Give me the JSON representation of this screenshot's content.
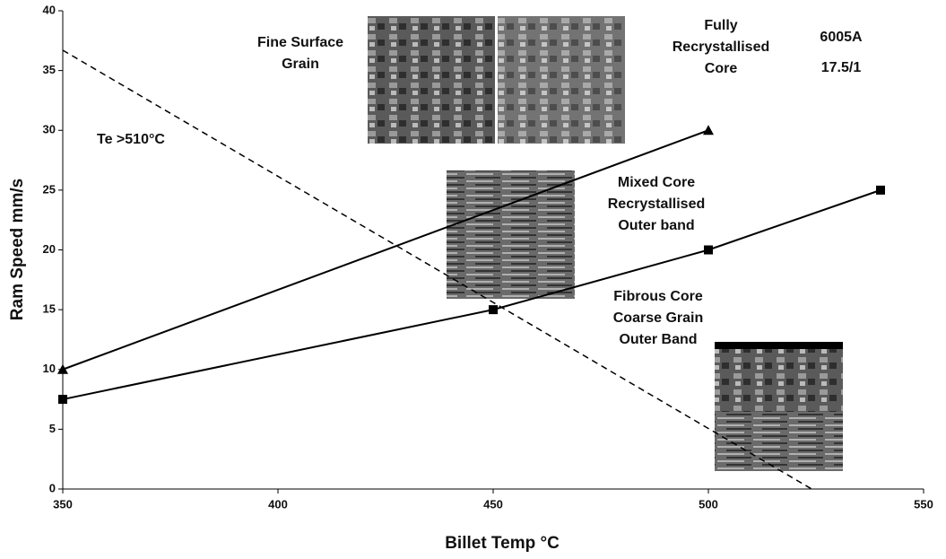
{
  "chart_data": {
    "type": "line",
    "xlabel": "Billet Temp °C",
    "ylabel": "Ram Speed mm/s",
    "xlim": [
      350,
      550
    ],
    "xticks": [
      350,
      400,
      450,
      500,
      550
    ],
    "ylim": [
      0,
      40
    ],
    "yticks": [
      0,
      5,
      10,
      15,
      20,
      25,
      30,
      35,
      40
    ],
    "series": [
      {
        "color": "#000000",
        "marker": "triangle",
        "dash": false,
        "x": [
          350,
          500
        ],
        "values": [
          10,
          30
        ]
      },
      {
        "color": "#000000",
        "marker": "square",
        "dash": false,
        "x": [
          350,
          450,
          500,
          540
        ],
        "values": [
          7.5,
          15,
          20,
          25
        ]
      },
      {
        "color": "#000000",
        "marker": "none",
        "dash": true,
        "x": [
          350,
          524
        ],
        "values": [
          36.7,
          0
        ]
      }
    ],
    "annotations": [
      {
        "lines": [
          "Te >510°C"
        ]
      },
      {
        "lines": [
          "Fine Surface",
          "Grain"
        ]
      },
      {
        "lines": [
          "Fully",
          "Recrystallised",
          "Core"
        ]
      },
      {
        "lines": [
          "6005A"
        ]
      },
      {
        "lines": [
          "17.5/1"
        ]
      },
      {
        "lines": [
          "Mixed Core",
          "Recrystallised",
          "Outer band"
        ]
      },
      {
        "lines": [
          "Fibrous Core",
          "Coarse Grain",
          "Outer Band"
        ]
      }
    ]
  }
}
